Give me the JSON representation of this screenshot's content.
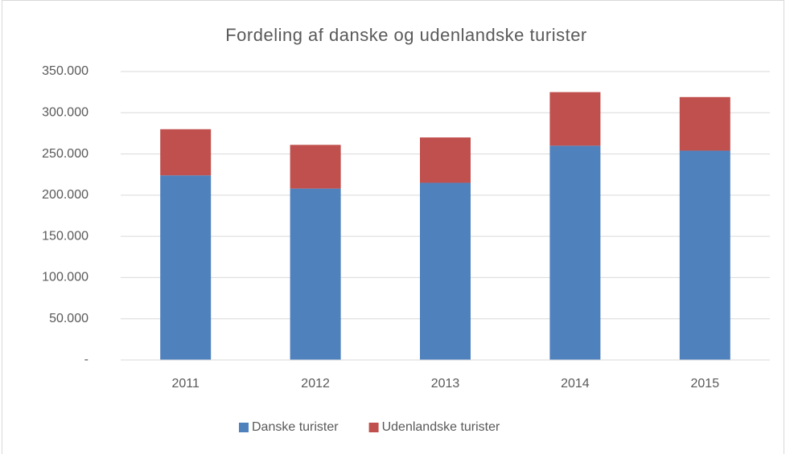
{
  "chart_data": {
    "type": "stacked_bar",
    "title": "Fordeling af danske og udenlandske turister",
    "categories": [
      "2011",
      "2012",
      "2013",
      "2014",
      "2015"
    ],
    "series": [
      {
        "name": "Danske turister",
        "color": "#4f81bd",
        "values": [
          224000,
          208000,
          215000,
          260000,
          254000
        ]
      },
      {
        "name": "Udenlandske turister",
        "color": "#c0504d",
        "values": [
          56000,
          53000,
          55000,
          65000,
          65000
        ]
      }
    ],
    "ylim": [
      0,
      350000
    ],
    "yticks": [
      {
        "value": 0,
        "label": "-"
      },
      {
        "value": 50000,
        "label": "50.000"
      },
      {
        "value": 100000,
        "label": "100.000"
      },
      {
        "value": 150000,
        "label": "150.000"
      },
      {
        "value": 200000,
        "label": "200.000"
      },
      {
        "value": 250000,
        "label": "250.000"
      },
      {
        "value": 300000,
        "label": "300.000"
      },
      {
        "value": 350000,
        "label": "350.000"
      }
    ],
    "grid": true,
    "legend": "bottom"
  }
}
